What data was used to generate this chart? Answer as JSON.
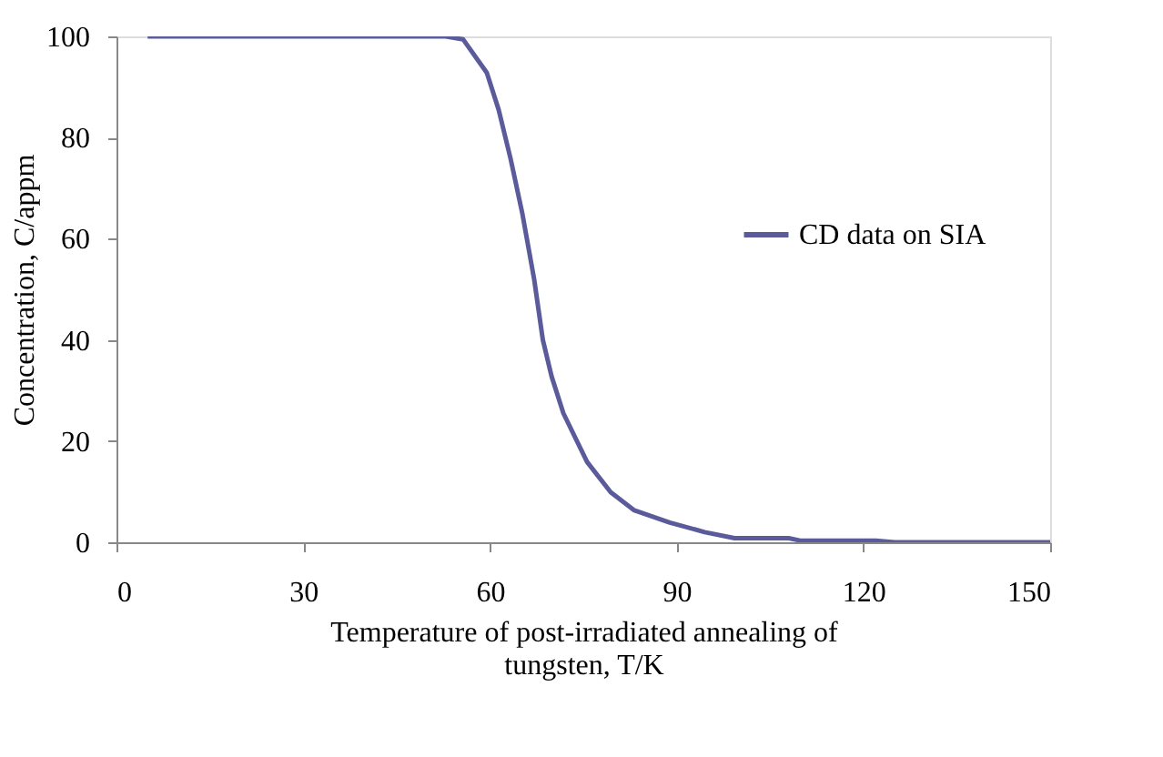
{
  "chart_data": {
    "type": "line",
    "xlabel": "Temperature of post-irradiated annealing of tungsten, T/K",
    "ylabel": "Concentration, C/appm",
    "x": [
      5,
      52.9,
      55.7,
      59.5,
      61.4,
      63.3,
      65.2,
      67.1,
      68.5,
      69.9,
      71.8,
      75.6,
      79.4,
      83.2,
      88.9,
      94.5,
      99.3,
      108,
      110,
      122,
      125,
      150
    ],
    "series": [
      {
        "name": "CD data on SIA",
        "color": "#5b5b9b",
        "values": [
          100,
          100,
          99.4,
          92.8,
          85.5,
          75.9,
          65,
          52,
          40,
          32.8,
          25.5,
          15.9,
          9.9,
          6.3,
          3.9,
          2,
          0.8,
          0.8,
          0.3,
          0.3,
          0,
          0
        ]
      }
    ],
    "xlim": [
      0,
      150
    ],
    "xticks": [
      0,
      30,
      60,
      90,
      120,
      150
    ],
    "ylim": [
      0,
      100
    ],
    "yticks": [
      0,
      20,
      40,
      60,
      80,
      100
    ],
    "grid": false,
    "legend": "right",
    "marker": "none",
    "line_style": "solid"
  }
}
